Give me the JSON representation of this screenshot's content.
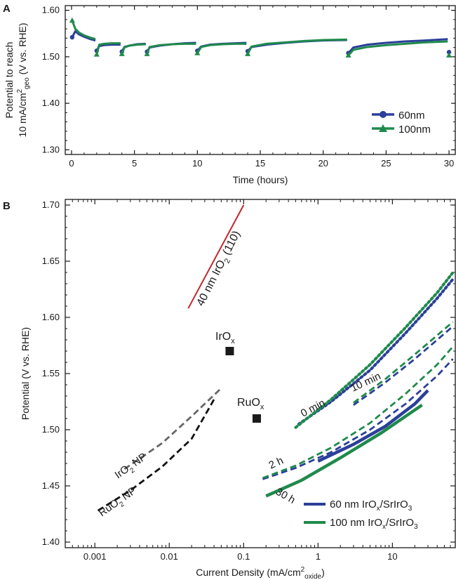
{
  "chart_data": [
    {
      "panel": "A",
      "type": "scatter",
      "xlabel": "Time (hours)",
      "ylabel_line1": "Potential to reach",
      "ylabel_line2": {
        "prefix": "10 mA/cm",
        "sup": "2",
        "sub": "geo",
        "suffix": " (V vs. RHE)"
      },
      "xlim": [
        -0.5,
        30.5
      ],
      "ylim": [
        1.29,
        1.61
      ],
      "xticks": [
        0,
        5,
        10,
        15,
        20,
        25,
        30
      ],
      "xtick_labels": [
        "0",
        "5",
        "10",
        "15",
        "20",
        "25",
        "30"
      ],
      "yticks": [
        1.3,
        1.4,
        1.5,
        1.6
      ],
      "ytick_labels": [
        "1.30",
        "1.40",
        "1.50",
        "1.60"
      ],
      "legend_position": "bottom-right",
      "series": [
        {
          "name": "60nm",
          "color": "#2b3f99",
          "marker": "circle",
          "x": [
            0.05,
            0.3,
            0.6,
            1.0,
            1.5,
            1.9,
            2.0,
            2.2,
            2.6,
            3.2,
            3.9,
            4.0,
            4.2,
            4.6,
            5.2,
            5.9,
            6.0,
            6.2,
            7.0,
            8.0,
            9.0,
            9.9,
            10.0,
            10.3,
            11.0,
            12.0,
            13.0,
            13.9,
            14.0,
            14.3,
            15.5,
            17.0,
            18.5,
            20.0,
            21.9,
            22.0,
            22.4,
            23.5,
            25.0,
            26.5,
            28.0,
            29.9,
            30.0
          ],
          "y": [
            1.542,
            1.555,
            1.548,
            1.543,
            1.538,
            1.535,
            1.513,
            1.523,
            1.525,
            1.526,
            1.526,
            1.511,
            1.521,
            1.524,
            1.527,
            1.528,
            1.511,
            1.52,
            1.524,
            1.527,
            1.529,
            1.53,
            1.513,
            1.522,
            1.526,
            1.528,
            1.529,
            1.53,
            1.512,
            1.521,
            1.526,
            1.53,
            1.533,
            1.535,
            1.536,
            1.508,
            1.52,
            1.526,
            1.53,
            1.533,
            1.535,
            1.538,
            1.51
          ]
        },
        {
          "name": "100nm",
          "color": "#1f8a4c",
          "marker": "triangle",
          "x": [
            0.05,
            0.3,
            0.6,
            1.0,
            1.5,
            1.9,
            2.0,
            2.2,
            2.6,
            3.2,
            3.9,
            4.0,
            4.2,
            4.6,
            5.2,
            5.9,
            6.0,
            6.2,
            7.0,
            8.0,
            9.0,
            9.9,
            10.0,
            10.3,
            11.0,
            12.0,
            13.0,
            13.9,
            14.0,
            14.3,
            15.5,
            17.0,
            18.5,
            20.0,
            21.9,
            22.0,
            22.4,
            23.5,
            25.0,
            26.5,
            28.0,
            29.9,
            30.0
          ],
          "y": [
            1.578,
            1.56,
            1.552,
            1.546,
            1.541,
            1.538,
            1.505,
            1.526,
            1.528,
            1.529,
            1.529,
            1.506,
            1.52,
            1.524,
            1.526,
            1.527,
            1.506,
            1.521,
            1.525,
            1.527,
            1.528,
            1.528,
            1.508,
            1.521,
            1.525,
            1.527,
            1.528,
            1.528,
            1.506,
            1.522,
            1.528,
            1.531,
            1.534,
            1.536,
            1.537,
            1.503,
            1.515,
            1.521,
            1.525,
            1.528,
            1.531,
            1.533,
            1.503
          ]
        }
      ]
    },
    {
      "panel": "B",
      "type": "line",
      "xscale": "log",
      "xlabel": {
        "prefix": "Current Density (mA/cm",
        "sup": "2",
        "sub": "oxide",
        "suffix": ")"
      },
      "ylabel": "Potential (V vs. RHE)",
      "xlim": [
        0.0004,
        70
      ],
      "ylim": [
        1.395,
        1.705
      ],
      "xticks": [
        0.001,
        0.01,
        0.1,
        1,
        10
      ],
      "xtick_labels": [
        "0.001",
        "0.01",
        "0.1",
        "1",
        "10"
      ],
      "yticks": [
        1.4,
        1.45,
        1.5,
        1.55,
        1.6,
        1.65,
        1.7
      ],
      "ytick_labels": [
        "1.40",
        "1.45",
        "1.50",
        "1.55",
        "1.60",
        "1.65",
        "1.70"
      ],
      "legend_position": "bottom-right",
      "legend": [
        {
          "label": {
            "prefix": "60 nm IrO",
            "sub": "x",
            "suffix": "/SrIrO",
            "sub2": "3"
          },
          "color": "#2b3f99"
        },
        {
          "label": {
            "prefix": "100 nm IrO",
            "sub": "x",
            "suffix": "/SrIrO",
            "sub2": "3"
          },
          "color": "#1f8a4c"
        }
      ],
      "series": [
        {
          "id": "irox-110",
          "color": "#c0272d",
          "style": "solid",
          "x": [
            0.018,
            0.1
          ],
          "y": [
            1.608,
            1.7
          ]
        },
        {
          "id": "iro2-np",
          "color": "#666666",
          "style": "dashed",
          "x": [
            0.0025,
            0.008,
            0.02,
            0.05
          ],
          "y": [
            1.465,
            1.488,
            1.512,
            1.537
          ]
        },
        {
          "id": "ruo2-np",
          "color": "#111111",
          "style": "dashed",
          "x": [
            0.0011,
            0.003,
            0.008,
            0.02,
            0.04
          ],
          "y": [
            1.428,
            1.446,
            1.467,
            1.492,
            1.527
          ]
        },
        {
          "id": "sto60-0min",
          "color": "#2b3f99",
          "style": "dotted",
          "x": [
            0.55,
            1.5,
            5,
            15,
            40,
            65
          ],
          "y": [
            1.505,
            1.525,
            1.553,
            1.586,
            1.617,
            1.634
          ]
        },
        {
          "id": "sto100-0min",
          "color": "#1f8a4c",
          "style": "dotted",
          "x": [
            0.5,
            1.5,
            5,
            15,
            40,
            65
          ],
          "y": [
            1.502,
            1.527,
            1.558,
            1.591,
            1.622,
            1.64
          ]
        },
        {
          "id": "sto60-10min",
          "color": "#2b3f99",
          "style": "dashed",
          "x": [
            3,
            8,
            20,
            45,
            65
          ],
          "y": [
            1.522,
            1.542,
            1.563,
            1.583,
            1.592
          ]
        },
        {
          "id": "sto100-10min",
          "color": "#1f8a4c",
          "style": "dashed",
          "x": [
            3,
            8,
            20,
            45,
            65
          ],
          "y": [
            1.524,
            1.545,
            1.567,
            1.587,
            1.596
          ]
        },
        {
          "id": "sto60-2h",
          "color": "#2b3f99",
          "style": "dashed",
          "x": [
            0.18,
            0.5,
            1.5,
            5,
            15,
            40,
            65
          ],
          "y": [
            1.456,
            1.466,
            1.48,
            1.5,
            1.523,
            1.548,
            1.563
          ]
        },
        {
          "id": "sto100-2h",
          "color": "#1f8a4c",
          "style": "dashed",
          "x": [
            0.18,
            0.5,
            1.5,
            5,
            15,
            40,
            65
          ],
          "y": [
            1.457,
            1.468,
            1.484,
            1.506,
            1.532,
            1.558,
            1.574
          ]
        },
        {
          "id": "sto60-30h",
          "color": "#2b3f99",
          "style": "solid",
          "x": [
            1,
            3,
            8,
            20,
            30
          ],
          "y": [
            1.472,
            1.487,
            1.503,
            1.523,
            1.535
          ]
        },
        {
          "id": "sto100-30h",
          "color": "#1f8a4c",
          "style": "solid",
          "x": [
            0.2,
            0.6,
            2,
            7,
            25
          ],
          "y": [
            1.441,
            1.455,
            1.475,
            1.497,
            1.522
          ]
        }
      ],
      "points": [
        {
          "id": "irox-point",
          "x": 0.065,
          "y": 1.57,
          "color": "#1a1a1a"
        },
        {
          "id": "ruox-point",
          "x": 0.15,
          "y": 1.51,
          "color": "#1a1a1a"
        }
      ],
      "annotations": {
        "irox_film": {
          "prefix": "40 nm IrO",
          "sub": "2",
          "suffix": " (110)"
        },
        "irox_point": {
          "prefix": "IrO",
          "sub": "x"
        },
        "ruox_point": {
          "prefix": "RuO",
          "sub": "x"
        },
        "iro2_np": {
          "prefix": "IrO",
          "sub": "2",
          "suffix": " NP"
        },
        "ruo2_np": {
          "prefix": "RuO",
          "sub": "2",
          "suffix": " NP"
        },
        "t_0min": "0 min",
        "t_10min": "10 min",
        "t_2h": "2 h",
        "t_30h": "30 h"
      }
    }
  ]
}
